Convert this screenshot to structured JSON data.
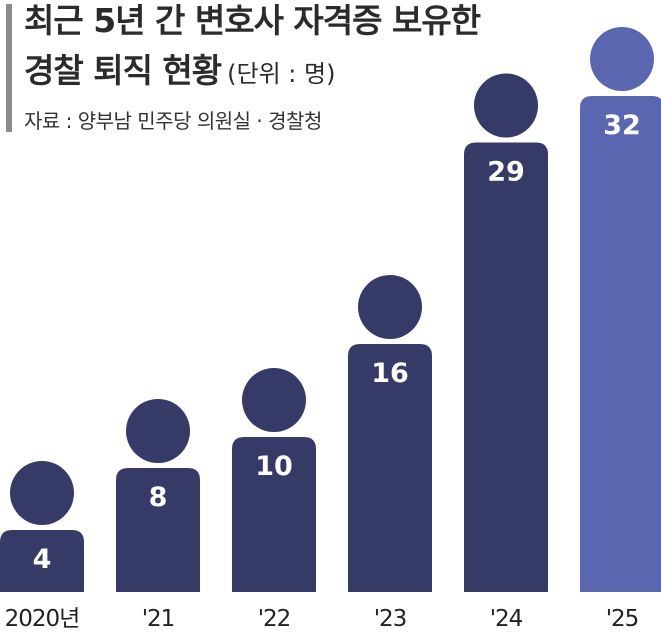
{
  "title_line1": "최근 5년 간 변호사 자격증 보유한",
  "title_line2": "경찰 퇴직 현황",
  "unit": "(단위 : 명)",
  "source": "자료 : 양부남 민주당 의원실 · 경찰청",
  "colors": {
    "bar": "#353a66",
    "bar_highlight": "#5a66b0",
    "label": "#ffffff",
    "axis_text": "#222222"
  },
  "chart_data": {
    "type": "bar",
    "categories": [
      "2020년",
      "'21",
      "'22",
      "'23",
      "'24",
      "'25"
    ],
    "values": [
      4,
      8,
      10,
      16,
      29,
      32
    ],
    "title": "최근 5년 간 변호사 자격증 보유한 경찰 퇴직 현황",
    "xlabel": "",
    "ylabel": "",
    "unit": "(단위 : 명)",
    "ylim": [
      0,
      32
    ],
    "highlight_index": 5,
    "grid": false,
    "legend": "none"
  }
}
